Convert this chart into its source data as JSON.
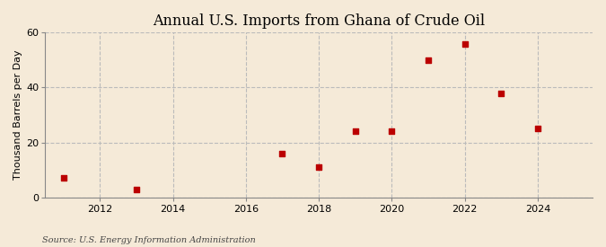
{
  "title": "Annual U.S. Imports from Ghana of Crude Oil",
  "ylabel": "Thousand Barrels per Day",
  "source_text": "Source: U.S. Energy Information Administration",
  "years": [
    2011,
    2013,
    2017,
    2018,
    2019,
    2020,
    2021,
    2022,
    2023,
    2024
  ],
  "values": [
    7,
    3,
    16,
    11,
    24,
    24,
    50,
    56,
    38,
    25
  ],
  "xlim": [
    2010.5,
    2025.5
  ],
  "ylim": [
    0,
    60
  ],
  "yticks": [
    0,
    20,
    40,
    60
  ],
  "xticks": [
    2012,
    2014,
    2016,
    2018,
    2020,
    2022,
    2024
  ],
  "marker_color": "#bb0000",
  "marker": "s",
  "marker_size": 4,
  "bg_color": "#f5ead8",
  "plot_bg_color": "#f5ead8",
  "grid_color": "#bbbbbb",
  "title_fontsize": 11.5,
  "label_fontsize": 8,
  "tick_fontsize": 8,
  "source_fontsize": 7
}
